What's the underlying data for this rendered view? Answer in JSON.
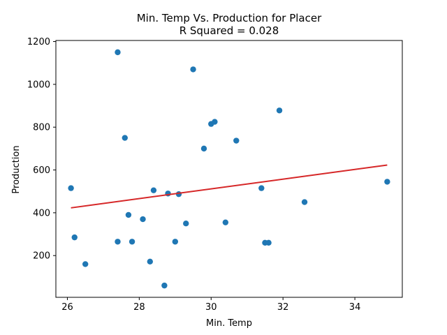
{
  "chart_data": {
    "type": "scatter",
    "title_line1": "Min. Temp Vs. Production for Placer",
    "title_line2": "R Squared =  0.028",
    "xlabel": "Min. Temp",
    "ylabel": "Production",
    "xlim": [
      25.68,
      35.32
    ],
    "ylim": [
      5,
      1205
    ],
    "xticks": [
      26,
      28,
      30,
      32,
      34
    ],
    "yticks": [
      200,
      400,
      600,
      800,
      1000,
      1200
    ],
    "points": [
      {
        "x": 26.1,
        "y": 515
      },
      {
        "x": 26.2,
        "y": 285
      },
      {
        "x": 26.5,
        "y": 160
      },
      {
        "x": 27.4,
        "y": 1150
      },
      {
        "x": 27.4,
        "y": 265
      },
      {
        "x": 27.6,
        "y": 750
      },
      {
        "x": 27.7,
        "y": 390
      },
      {
        "x": 27.8,
        "y": 265
      },
      {
        "x": 28.1,
        "y": 370
      },
      {
        "x": 28.3,
        "y": 172
      },
      {
        "x": 28.4,
        "y": 505
      },
      {
        "x": 28.7,
        "y": 60
      },
      {
        "x": 28.8,
        "y": 490
      },
      {
        "x": 29.0,
        "y": 265
      },
      {
        "x": 29.1,
        "y": 487
      },
      {
        "x": 29.3,
        "y": 350
      },
      {
        "x": 29.5,
        "y": 1070
      },
      {
        "x": 29.8,
        "y": 700
      },
      {
        "x": 30.0,
        "y": 815
      },
      {
        "x": 30.1,
        "y": 825
      },
      {
        "x": 30.4,
        "y": 355
      },
      {
        "x": 30.7,
        "y": 737
      },
      {
        "x": 31.4,
        "y": 515
      },
      {
        "x": 31.5,
        "y": 260
      },
      {
        "x": 31.6,
        "y": 260
      },
      {
        "x": 31.9,
        "y": 878
      },
      {
        "x": 32.6,
        "y": 450
      },
      {
        "x": 34.9,
        "y": 545
      }
    ],
    "regression_line": {
      "x": [
        26.1,
        34.9
      ],
      "y": [
        423,
        623
      ]
    },
    "grid": false,
    "point_color": "#1f77b4",
    "line_color": "#d62728"
  }
}
